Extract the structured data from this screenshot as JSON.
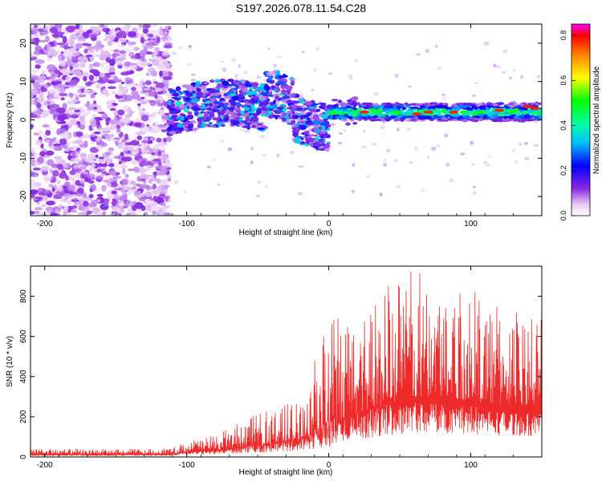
{
  "title": "S197.2026.078.11.54.C28",
  "chart_data": [
    {
      "type": "heatmap",
      "xlabel": "Height of straight line (km)",
      "ylabel": "Frequency (Hz)",
      "xlim": [
        -210,
        150
      ],
      "ylim": [
        -25,
        25
      ],
      "xticks": [
        -200,
        -100,
        0,
        100
      ],
      "yticks": [
        -20,
        -10,
        0,
        10,
        20
      ],
      "colorbar": {
        "label": "Normalized spectral amplitude",
        "range": [
          0.0,
          0.85
        ],
        "ticks": [
          0.0,
          0.2,
          0.4,
          0.6,
          0.8
        ]
      },
      "description_regions": [
        {
          "x_range": [
            -210,
            -112
          ],
          "freq_range": [
            -25,
            25
          ],
          "amplitude": "low (0.05-0.15), broadband noise"
        },
        {
          "x_range": [
            -112,
            0
          ],
          "freq_range": [
            -5,
            10
          ],
          "amplitude": "moderate (0.1-0.4), wandering signal"
        },
        {
          "x_range": [
            0,
            150
          ],
          "freq_center": 2,
          "amplitude": "high (0.3-0.8), narrow band near 2 Hz"
        }
      ]
    },
    {
      "type": "line",
      "xlabel": "Height of straight line (km)",
      "ylabel": "SNR (10 * v/v)",
      "xlim": [
        -210,
        150
      ],
      "ylim": [
        0,
        950
      ],
      "xticks": [
        -200,
        -100,
        0,
        100
      ],
      "yticks": [
        0,
        200,
        400,
        600,
        800
      ],
      "series": [
        {
          "name": "SNR",
          "color": "#ee2a2a",
          "envelope_x": [
            -210,
            -150,
            -110,
            -100,
            -80,
            -60,
            -40,
            -20,
            0,
            20,
            40,
            60,
            80,
            100,
            120,
            150
          ],
          "envelope_baseline": [
            12,
            12,
            15,
            25,
            35,
            45,
            60,
            80,
            110,
            220,
            260,
            300,
            300,
            280,
            260,
            260
          ],
          "envelope_peak": [
            40,
            40,
            45,
            85,
            110,
            180,
            250,
            290,
            680,
            740,
            880,
            940,
            880,
            850,
            760,
            700
          ]
        }
      ]
    }
  ]
}
